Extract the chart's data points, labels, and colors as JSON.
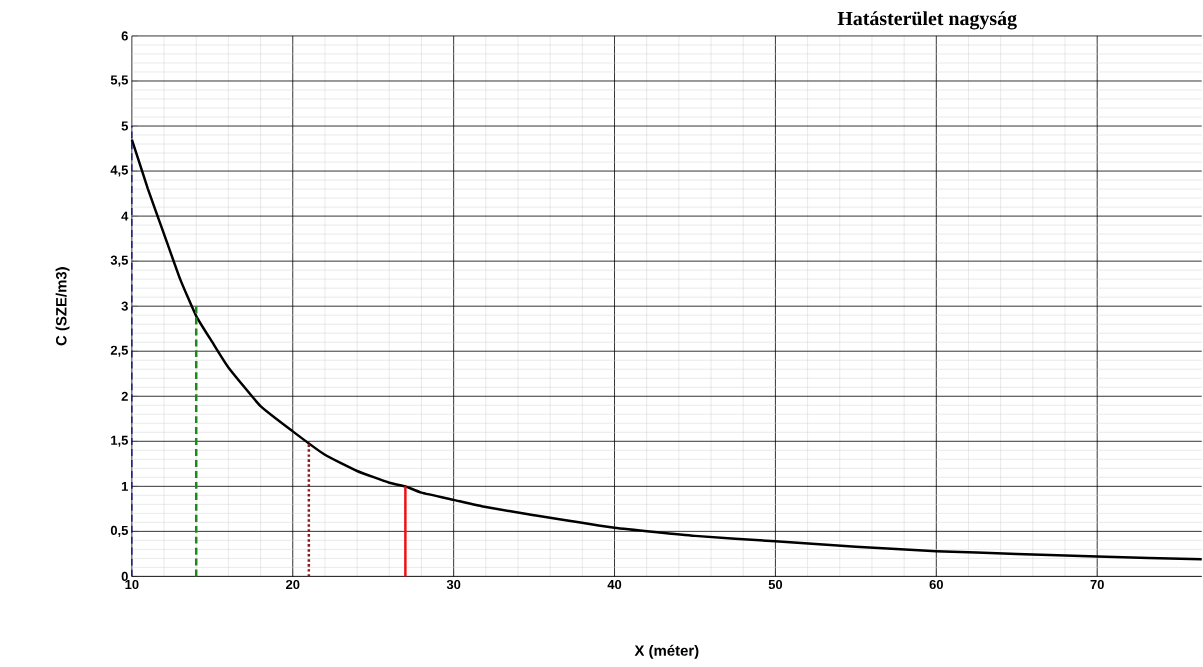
{
  "chart_data": {
    "type": "line",
    "title": "Hatásterület nagyság",
    "xlabel": "X (méter)",
    "ylabel": "C (SZE/m3)",
    "xlim": [
      10,
      76.5
    ],
    "ylim": [
      0,
      6
    ],
    "xticks": [
      10,
      20,
      30,
      40,
      50,
      60,
      70
    ],
    "yticks": [
      0,
      {
        "value": 0.5,
        "label": "0,5"
      },
      1,
      {
        "value": 1.5,
        "label": "1,5"
      },
      2,
      {
        "value": 2.5,
        "label": "2,5"
      },
      3,
      {
        "value": 3.5,
        "label": "3,5"
      },
      4,
      {
        "value": 4.5,
        "label": "4,5"
      },
      5,
      {
        "value": 5.5,
        "label": "5,5"
      },
      6
    ],
    "grid": true,
    "series": [
      {
        "color": "#000000",
        "line_style": "solid",
        "x": [
          10,
          11,
          12,
          13,
          14,
          15,
          16,
          18,
          20,
          22,
          24,
          26,
          27,
          28,
          30,
          32,
          35,
          40,
          45,
          50,
          55,
          60,
          65,
          70,
          76.5
        ],
        "values": [
          4.85,
          4.3,
          3.8,
          3.3,
          2.89,
          2.6,
          2.32,
          1.89,
          1.61,
          1.35,
          1.17,
          1.04,
          1.0,
          0.93,
          0.85,
          0.77,
          0.68,
          0.54,
          0.45,
          0.39,
          0.33,
          0.28,
          0.25,
          0.22,
          0.19
        ]
      },
      {
        "color": "#00008b",
        "line_style": "dashed",
        "x": [
          10,
          10
        ],
        "values": [
          0,
          5
        ]
      },
      {
        "color": "#1a8a1a",
        "line_style": "dashed",
        "x": [
          14,
          14
        ],
        "values": [
          0,
          3
        ]
      },
      {
        "color": "#8b1a1a",
        "line_style": "dotted",
        "x": [
          21,
          21
        ],
        "values": [
          0,
          1.5
        ]
      },
      {
        "color": "#ee1111",
        "line_style": "solid",
        "x": [
          27,
          27
        ],
        "values": [
          0,
          1
        ]
      }
    ]
  }
}
